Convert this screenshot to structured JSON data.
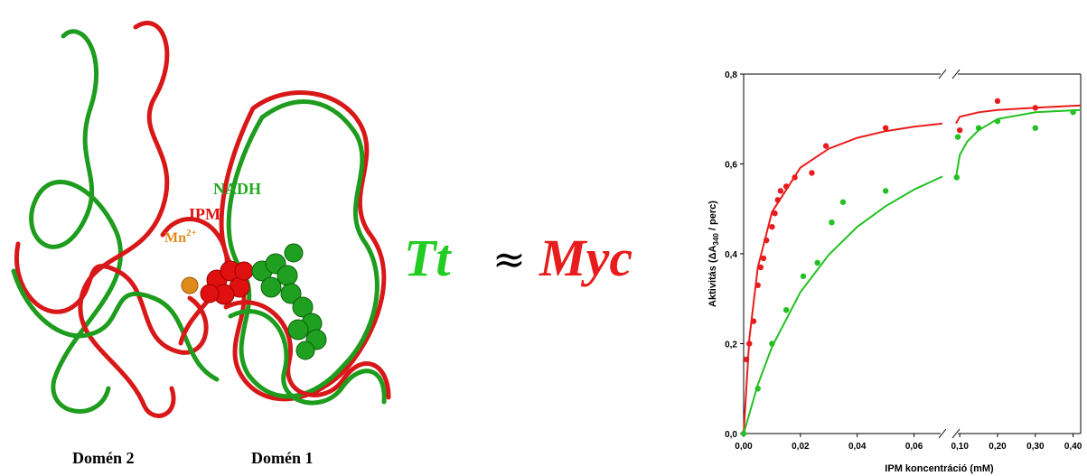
{
  "structure": {
    "labels": {
      "nadh": "NADH",
      "ipm": "IPM",
      "mn": "Mn",
      "mn_charge": "2+",
      "domain2": "Domén 2",
      "domain1": "Domén 1"
    }
  },
  "comparison": {
    "left": "Tt",
    "symbol": "≈",
    "right": "Myc"
  },
  "chart_data": [
    {
      "type": "scatter",
      "ylabel_parts": [
        "Aktivitás (ΔA",
        "340",
        " / perc)"
      ],
      "xlabel": "IPM koncentráció (mM)",
      "xlim": [
        0,
        0.07
      ],
      "ylim": [
        0,
        0.8
      ],
      "xticks": [
        {
          "value": 0,
          "label": "0,00"
        },
        {
          "value": 0.02,
          "label": "0,02"
        },
        {
          "value": 0.04,
          "label": "0,04"
        },
        {
          "value": 0.06,
          "label": "0,06"
        }
      ],
      "yticks": [
        {
          "value": 0,
          "label": "0,0"
        },
        {
          "value": 0.2,
          "label": "0,2"
        },
        {
          "value": 0.4,
          "label": "0,4"
        },
        {
          "value": 0.6,
          "label": "0,6"
        },
        {
          "value": 0.8,
          "label": "0,8"
        }
      ],
      "series": [
        {
          "type": "scatter",
          "color": "#e81c1c",
          "x": [
            0.001,
            0.002,
            0.0035,
            0.005,
            0.006,
            0.007,
            0.008,
            0.01,
            0.011,
            0.012,
            0.013,
            0.015,
            0.018,
            0.024,
            0.029,
            0.05
          ],
          "values": [
            0.165,
            0.2,
            0.25,
            0.33,
            0.37,
            0.39,
            0.43,
            0.46,
            0.49,
            0.52,
            0.54,
            0.55,
            0.57,
            0.58,
            0.64,
            0.68
          ]
        },
        {
          "type": "line",
          "color": "#e81c1c",
          "x": [
            0,
            0.002,
            0.005,
            0.01,
            0.02,
            0.03,
            0.04,
            0.05,
            0.06,
            0.07
          ],
          "values": [
            0,
            0.211,
            0.37,
            0.493,
            0.592,
            0.634,
            0.658,
            0.673,
            0.683,
            0.69
          ]
        },
        {
          "type": "scatter",
          "color": "#22c022",
          "x": [
            0,
            0.005,
            0.01,
            0.015,
            0.021,
            0.026,
            0.031,
            0.035,
            0.05
          ],
          "values": [
            0,
            0.1,
            0.2,
            0.275,
            0.35,
            0.38,
            0.47,
            0.515,
            0.54
          ]
        },
        {
          "type": "line",
          "color": "#22c022",
          "x": [
            0,
            0.005,
            0.01,
            0.02,
            0.03,
            0.04,
            0.05,
            0.06,
            0.07
          ],
          "values": [
            0,
            0.109,
            0.193,
            0.315,
            0.398,
            0.46,
            0.506,
            0.543,
            0.572
          ]
        }
      ]
    },
    {
      "type": "scatter",
      "xlim": [
        0.09,
        0.42
      ],
      "ylim": [
        0,
        0.8
      ],
      "xticks": [
        {
          "value": 0.1,
          "label": "0,10"
        },
        {
          "value": 0.2,
          "label": "0,20"
        },
        {
          "value": 0.3,
          "label": "0,30"
        },
        {
          "value": 0.4,
          "label": "0,40"
        }
      ],
      "series": [
        {
          "type": "scatter",
          "color": "#e81c1c",
          "x": [
            0.1,
            0.2,
            0.3
          ],
          "values": [
            0.675,
            0.74,
            0.725
          ]
        },
        {
          "type": "line",
          "color": "#e81c1c",
          "x": [
            0.09,
            0.1,
            0.15,
            0.2,
            0.3,
            0.42
          ],
          "values": [
            0.69,
            0.705,
            0.715,
            0.72,
            0.725,
            0.73
          ]
        },
        {
          "type": "scatter",
          "color": "#22c022",
          "x": [
            0.092,
            0.095,
            0.15,
            0.2,
            0.3,
            0.4
          ],
          "values": [
            0.57,
            0.66,
            0.68,
            0.695,
            0.68,
            0.715
          ]
        },
        {
          "type": "line",
          "color": "#22c022",
          "x": [
            0.09,
            0.1,
            0.12,
            0.15,
            0.2,
            0.3,
            0.42
          ],
          "values": [
            0.57,
            0.62,
            0.65,
            0.675,
            0.7,
            0.715,
            0.72
          ]
        }
      ]
    }
  ]
}
